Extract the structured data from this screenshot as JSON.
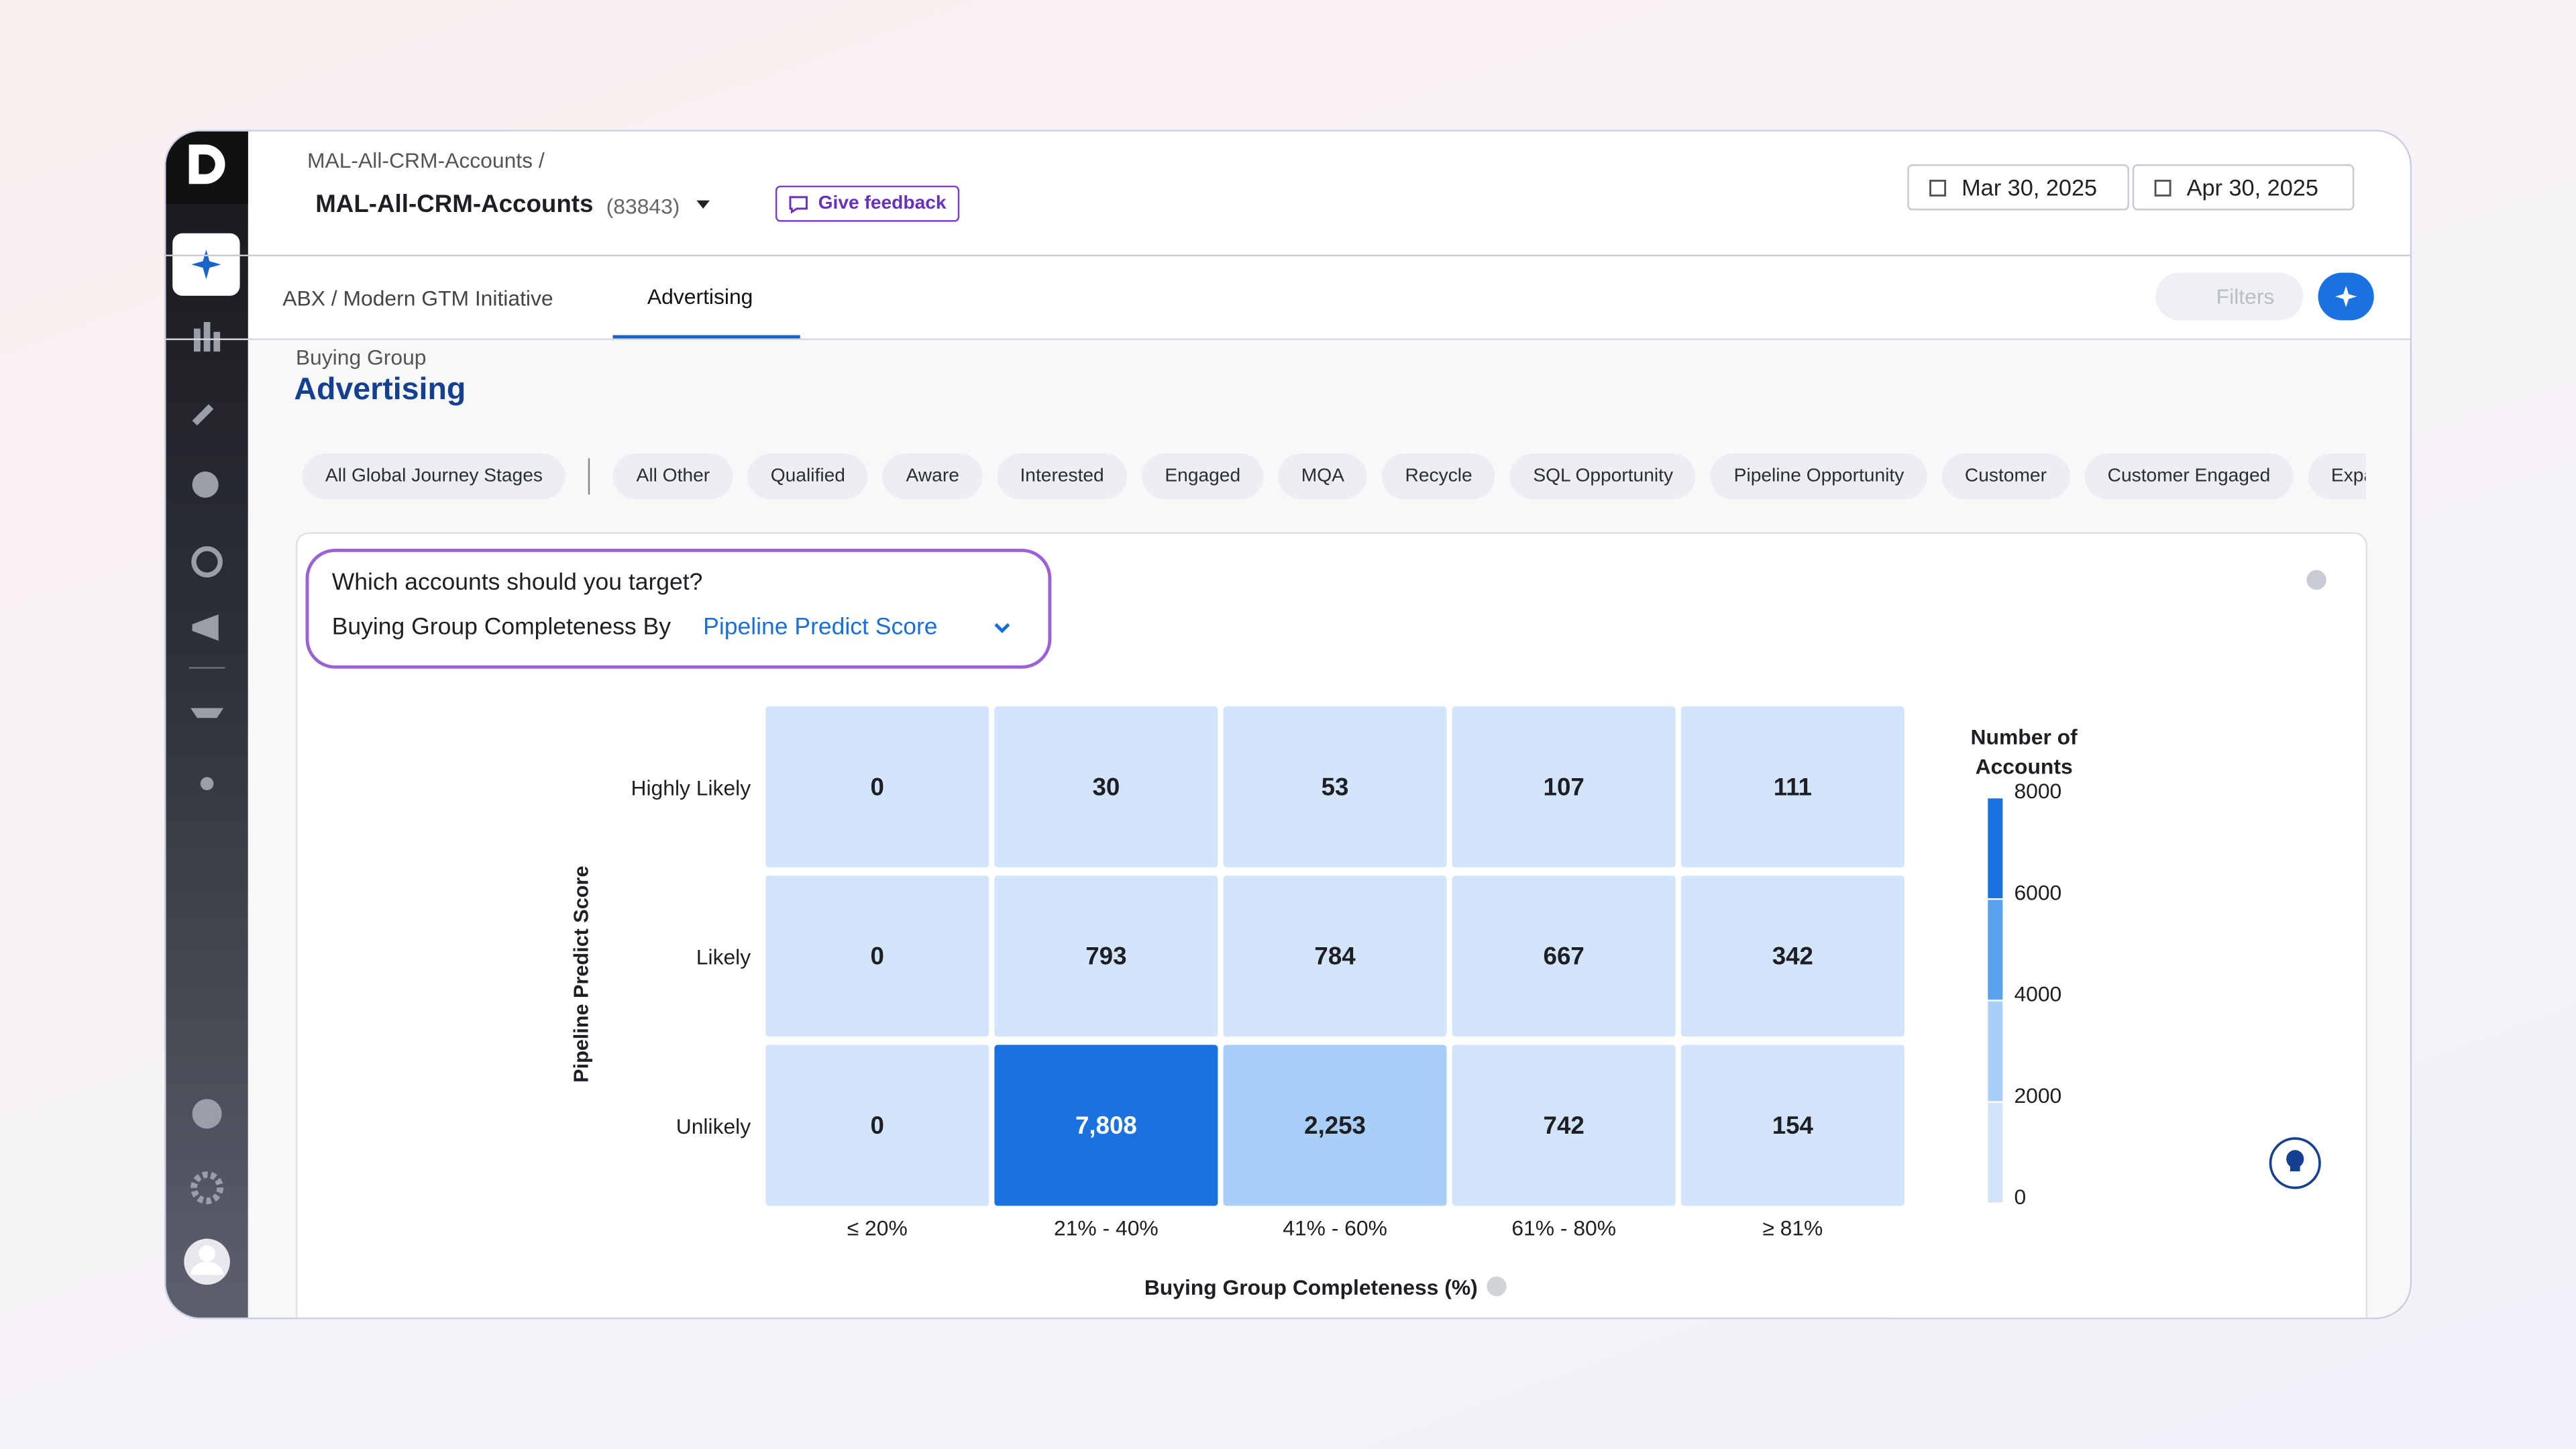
{
  "header": {
    "breadcrumb": "MAL-All-CRM-Accounts /",
    "title": "MAL-All-CRM-Accounts",
    "count": "(83843)",
    "feedback": "Give feedback",
    "date_from": "Mar 30, 2025",
    "date_to": "Apr 30, 2025"
  },
  "tabs": [
    "ABX / Modern GTM Initiative",
    "Advertising"
  ],
  "filters": "Filters",
  "page": {
    "overline": "Buying Group",
    "title": "Advertising"
  },
  "stages": {
    "all": "All Global Journey Stages",
    "items": [
      "All Other",
      "Qualified",
      "Aware",
      "Interested",
      "Engaged",
      "MQA",
      "Recycle",
      "SQL Opportunity",
      "Pipeline Opportunity",
      "Customer",
      "Customer Engaged",
      "Expan"
    ]
  },
  "question": {
    "title": "Which accounts should you target?",
    "prefix": "Buying Group Completeness By",
    "selection": "Pipeline Predict Score"
  },
  "chart_data": {
    "type": "heatmap",
    "categories": [
      "≤ 20%",
      "21% - 40%",
      "41% - 60%",
      "61% - 80%",
      "≥ 81%"
    ],
    "y_categories": [
      "Highly Likely",
      "Likely",
      "Unlikely"
    ],
    "values": [
      [
        0,
        30,
        53,
        107,
        111
      ],
      [
        0,
        793,
        784,
        667,
        342
      ],
      [
        0,
        7808,
        2253,
        742,
        154
      ]
    ],
    "value_labels": [
      [
        "0",
        "30",
        "53",
        "107",
        "111"
      ],
      [
        "0",
        "793",
        "784",
        "667",
        "342"
      ],
      [
        "0",
        "7,808",
        "2,253",
        "742",
        "154"
      ]
    ],
    "xlabel": "Buying Group Completeness (%)",
    "ylabel": "Pipeline Predict Score",
    "legend_title": "Number of Accounts",
    "clim": [
      0,
      8000
    ],
    "cticks": [
      0,
      2000,
      4000,
      6000,
      8000
    ],
    "colorscale": [
      "#d3e5fb",
      "#a9cff8",
      "#5aa3ef",
      "#1a72e0"
    ]
  }
}
